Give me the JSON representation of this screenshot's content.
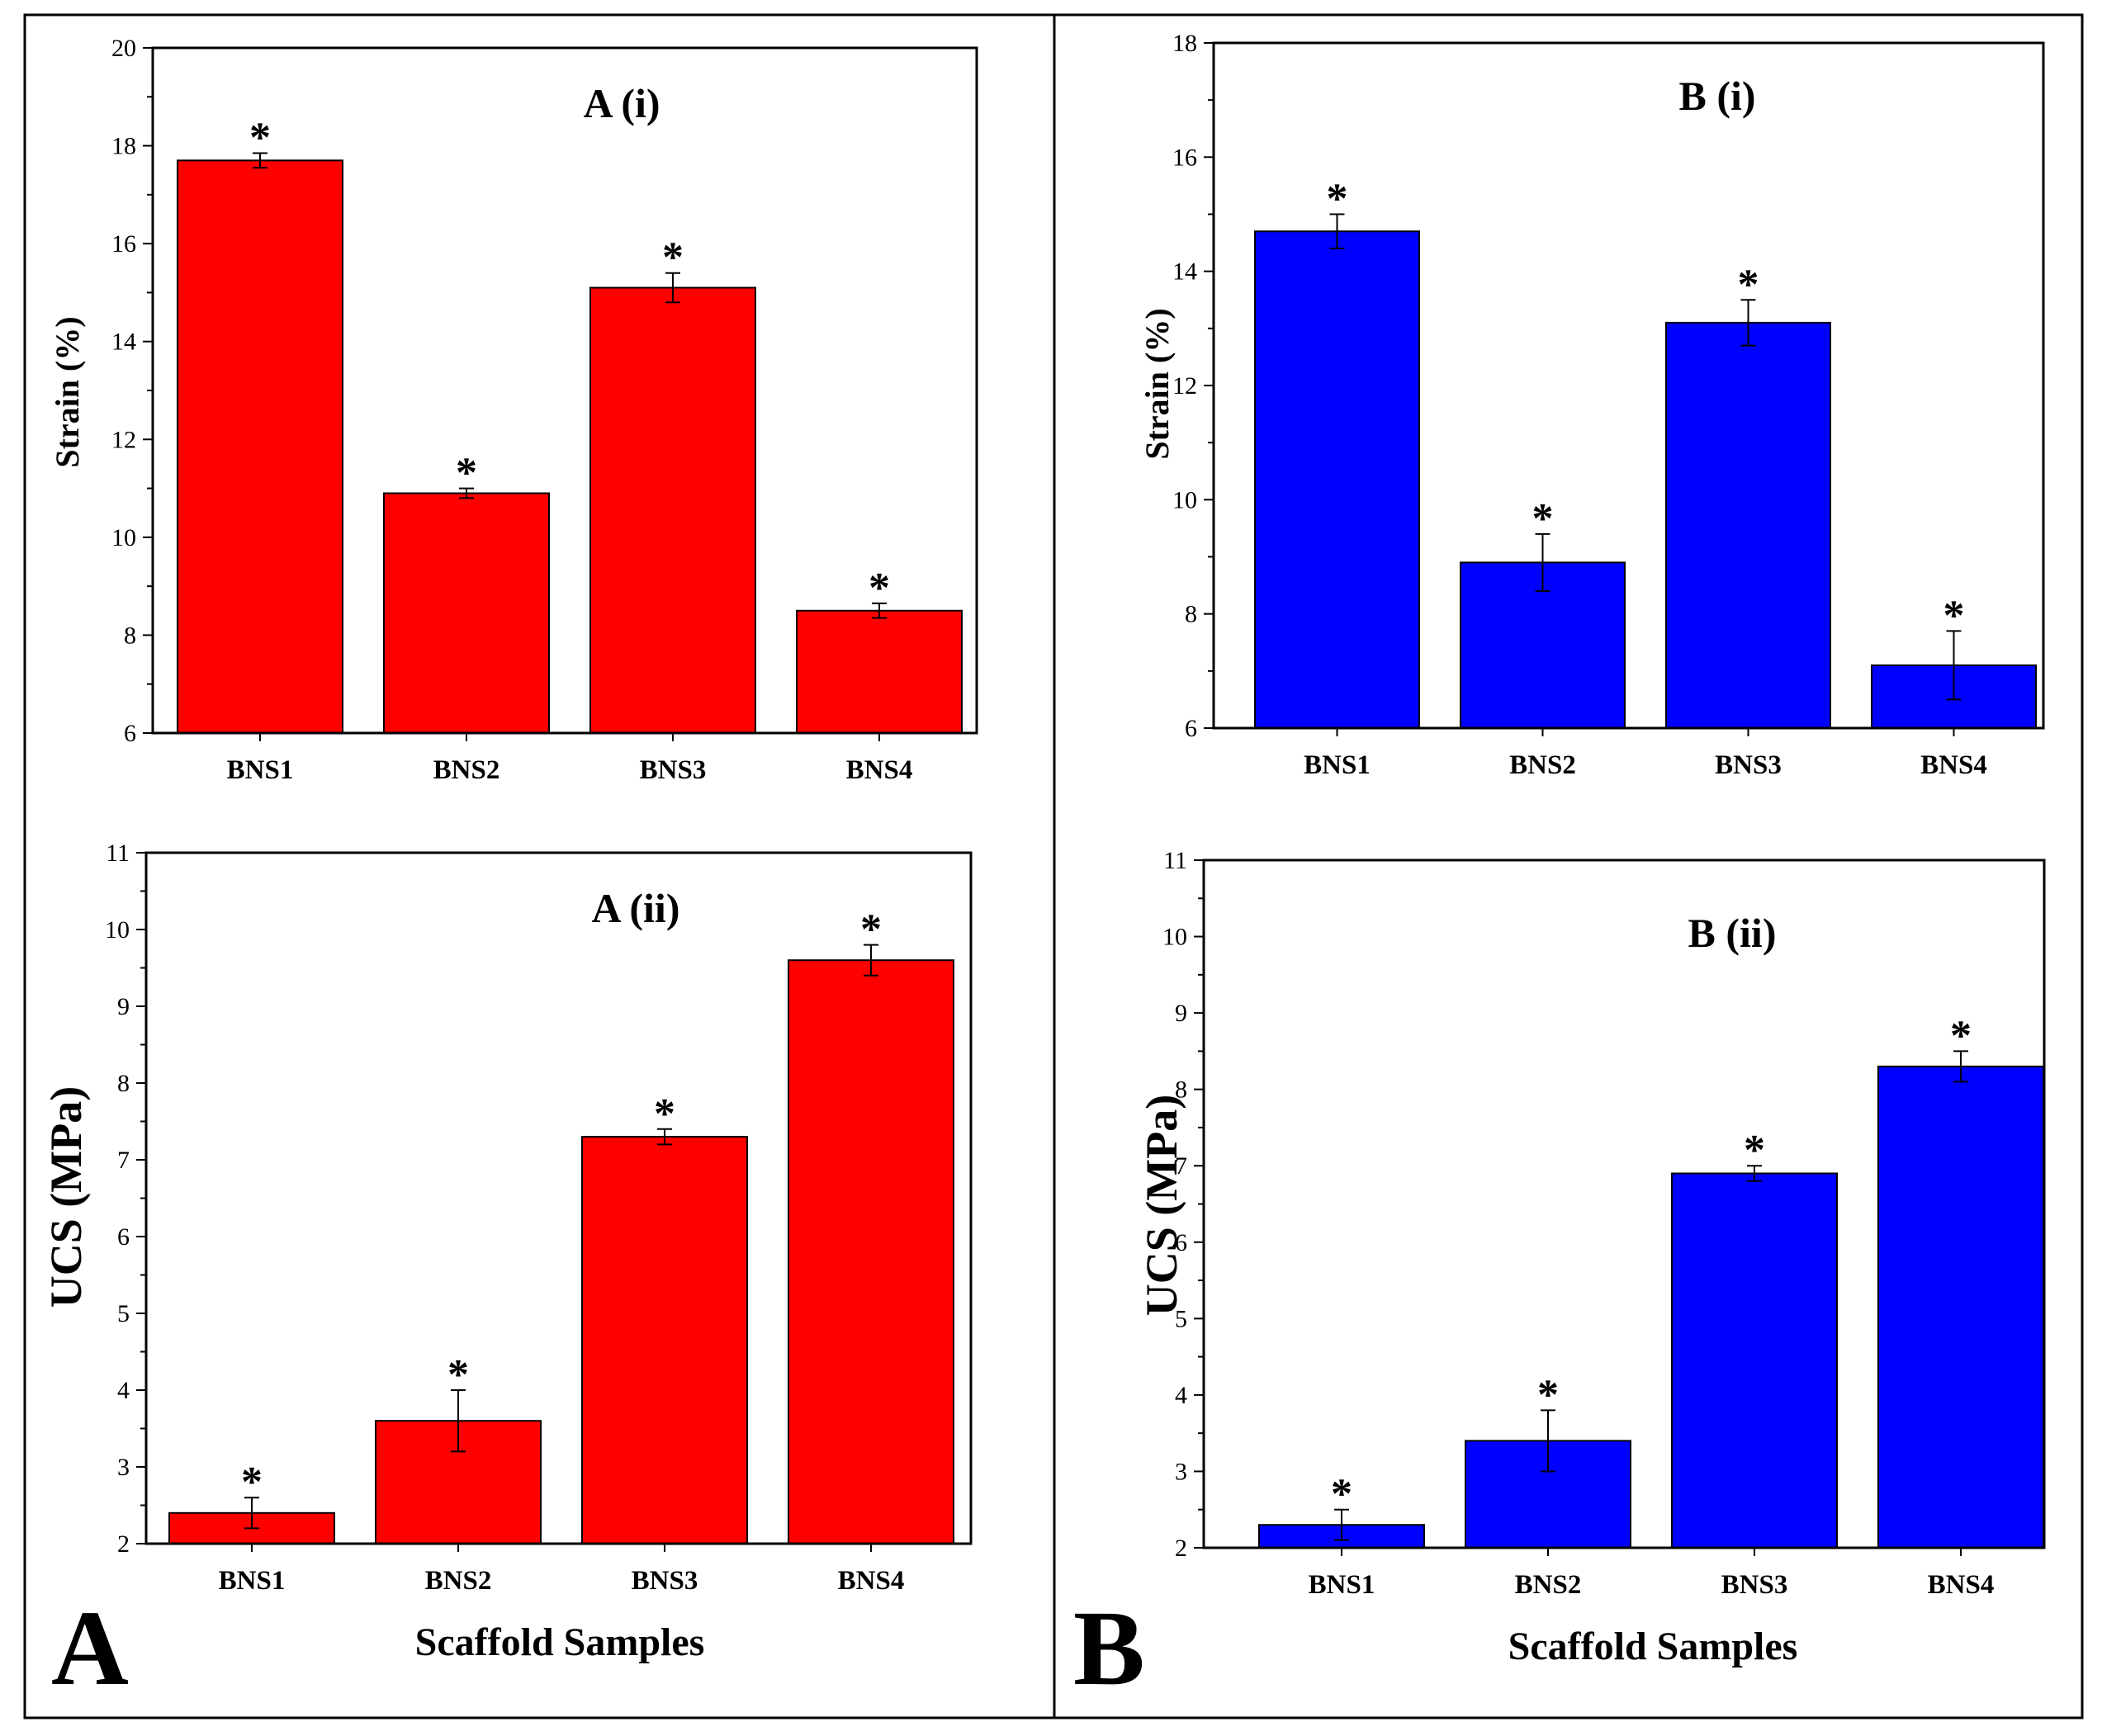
{
  "figure": {
    "panel_labels": [
      "A",
      "B"
    ],
    "shared_xlabel": "Scaffold Samples"
  },
  "chart_data": [
    {
      "type": "bar",
      "title": "A (i)",
      "ylabel": "Strain (%)",
      "xlabel": "",
      "categories": [
        "BNS1",
        "BNS2",
        "BNS3",
        "BNS4"
      ],
      "values": [
        17.7,
        10.9,
        15.1,
        8.5
      ],
      "errors": [
        0.15,
        0.1,
        0.3,
        0.15
      ],
      "significance": [
        "*",
        "*",
        "*",
        "*"
      ],
      "ylim": [
        6,
        20
      ],
      "yticks": [
        6,
        8,
        10,
        12,
        14,
        16,
        18,
        20
      ],
      "color": "#ff0000"
    },
    {
      "type": "bar",
      "title": "B (i)",
      "ylabel": "Strain (%)",
      "xlabel": "",
      "categories": [
        "BNS1",
        "BNS2",
        "BNS3",
        "BNS4"
      ],
      "values": [
        14.7,
        8.9,
        13.1,
        7.1
      ],
      "errors": [
        0.3,
        0.5,
        0.4,
        0.6
      ],
      "significance": [
        "*",
        "*",
        "*",
        "*"
      ],
      "ylim": [
        6,
        18
      ],
      "yticks": [
        6,
        8,
        10,
        12,
        14,
        16,
        18
      ],
      "color": "#0000ff"
    },
    {
      "type": "bar",
      "title": "A (ii)",
      "ylabel": "UCS (MPa)",
      "xlabel": "Scaffold Samples",
      "categories": [
        "BNS1",
        "BNS2",
        "BNS3",
        "BNS4"
      ],
      "values": [
        2.4,
        3.6,
        7.3,
        9.6
      ],
      "errors": [
        0.2,
        0.4,
        0.1,
        0.2
      ],
      "significance": [
        "*",
        "*",
        "*",
        "*"
      ],
      "ylim": [
        2,
        11
      ],
      "yticks": [
        2,
        3,
        4,
        5,
        6,
        7,
        8,
        9,
        10,
        11
      ],
      "color": "#ff0000"
    },
    {
      "type": "bar",
      "title": "B (ii)",
      "ylabel": "UCS (MPa)",
      "xlabel": "Scaffold Samples",
      "categories": [
        "BNS1",
        "BNS2",
        "BNS3",
        "BNS4"
      ],
      "values": [
        2.3,
        3.4,
        6.9,
        8.3
      ],
      "errors": [
        0.2,
        0.4,
        0.1,
        0.2
      ],
      "significance": [
        "*",
        "*",
        "*",
        "*"
      ],
      "ylim": [
        2,
        11
      ],
      "yticks": [
        2,
        3,
        4,
        5,
        6,
        7,
        8,
        9,
        10,
        11
      ],
      "color": "#0000ff"
    }
  ]
}
